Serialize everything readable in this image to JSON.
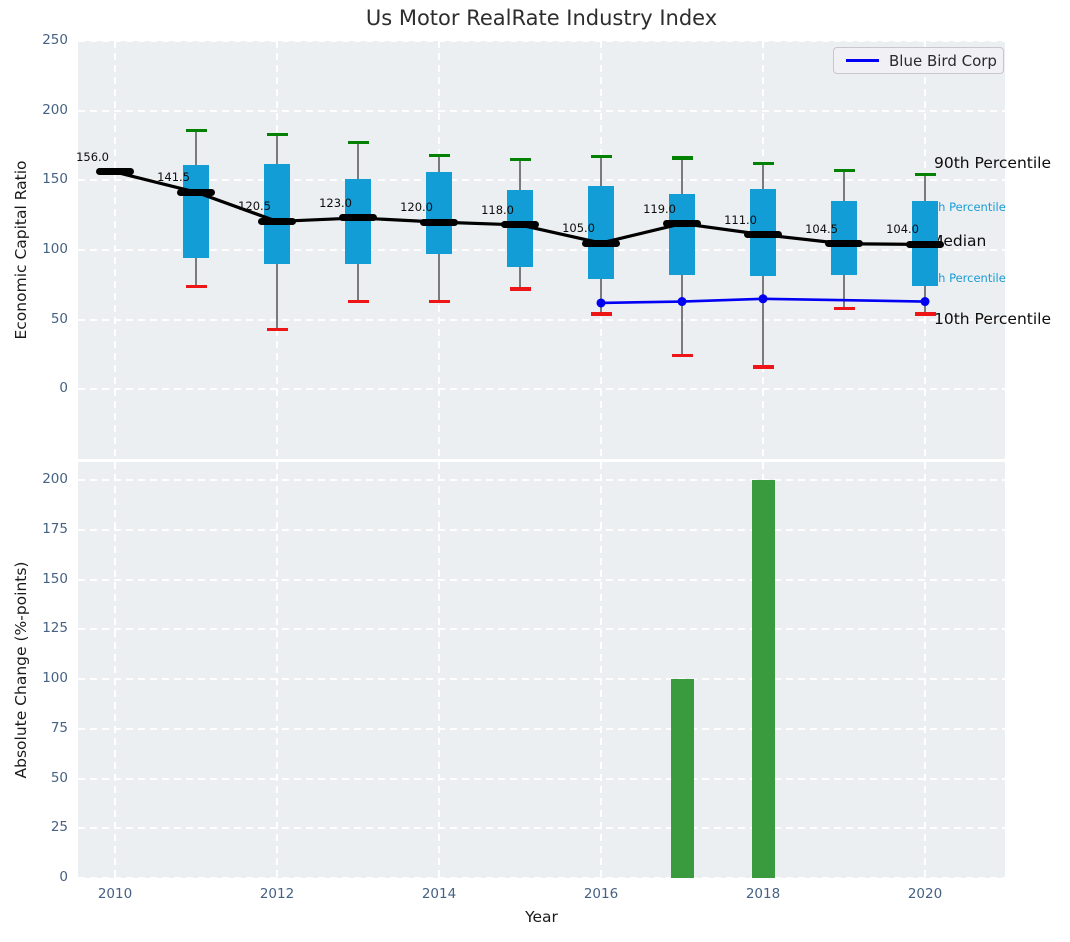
{
  "title": "Us Motor RealRate Industry Index",
  "colors": {
    "plot_bg": "#eceff1",
    "box_fill": "#129dd6",
    "p90_cap": "#038103",
    "p10_cap": "#ed1515",
    "median_line": "#000000",
    "company_line": "#0000f2",
    "bar_fill": "#3a9b3e",
    "tick_label": "#456283",
    "accent_label": "#1a9cd6"
  },
  "legend": {
    "label": "Blue Bird Corp"
  },
  "chart_data": [
    {
      "type": "boxplot-line",
      "title": "Us Motor RealRate Industry Index",
      "ylabel": "Economic Capital Ratio",
      "ylim": [
        -50,
        250
      ],
      "yticks": [
        0,
        50,
        100,
        150,
        200,
        250
      ],
      "xlim": [
        2009.54,
        2020.99
      ],
      "grid_years": [
        2010,
        2012,
        2014,
        2016,
        2018,
        2020
      ],
      "grid": "on",
      "legend_position": "upper right",
      "years": [
        2010,
        2011,
        2012,
        2013,
        2014,
        2015,
        2016,
        2017,
        2018,
        2019,
        2020
      ],
      "median": [
        156.0,
        141.5,
        120.5,
        123.0,
        120.0,
        118.0,
        105.0,
        119.0,
        111.0,
        104.5,
        104.0
      ],
      "median_labels": [
        "156.0",
        "141.5",
        "120.5",
        "123.0",
        "120.0",
        "118.0",
        "105.0",
        "119.0",
        "111.0",
        "104.5",
        "104.0"
      ],
      "p75": [
        null,
        161,
        162,
        151,
        156,
        143,
        146,
        140,
        144,
        135,
        135
      ],
      "p25": [
        null,
        94,
        90,
        90,
        97,
        88,
        79,
        82,
        81,
        82,
        74
      ],
      "p90": [
        null,
        186,
        183,
        177,
        168,
        165,
        167,
        166,
        162,
        157,
        154
      ],
      "p10": [
        null,
        74,
        43,
        63,
        63,
        72,
        54,
        24,
        16,
        58,
        54
      ],
      "company": {
        "name": "Blue Bird Corp",
        "x": [
          2016,
          2017,
          2018,
          2020
        ],
        "y": [
          62,
          63,
          65,
          63
        ]
      },
      "right_labels": [
        {
          "text": "90th Percentile",
          "v": 161.5,
          "style": "large"
        },
        {
          "text": "75th Percentile",
          "v": 131.0,
          "style": "small"
        },
        {
          "text": "Median",
          "v": 105.5,
          "style": "large"
        },
        {
          "text": "25th Percentile",
          "v": 80.0,
          "style": "small"
        },
        {
          "text": "10th Percentile",
          "v": 49.5,
          "style": "large"
        }
      ]
    },
    {
      "type": "bar",
      "ylabel": "Absolute Change (%-points)",
      "xlabel": "Year",
      "ylim": [
        0,
        209
      ],
      "yticks": [
        0,
        25,
        50,
        75,
        100,
        125,
        150,
        175,
        200
      ],
      "xtick_years": [
        2010,
        2012,
        2014,
        2016,
        2018,
        2020
      ],
      "grid_years": [
        2010,
        2012,
        2014,
        2016,
        2018,
        2020
      ],
      "grid": "on",
      "bars": [
        {
          "year": 2017,
          "value": 100
        },
        {
          "year": 2018,
          "value": 200
        }
      ]
    }
  ]
}
